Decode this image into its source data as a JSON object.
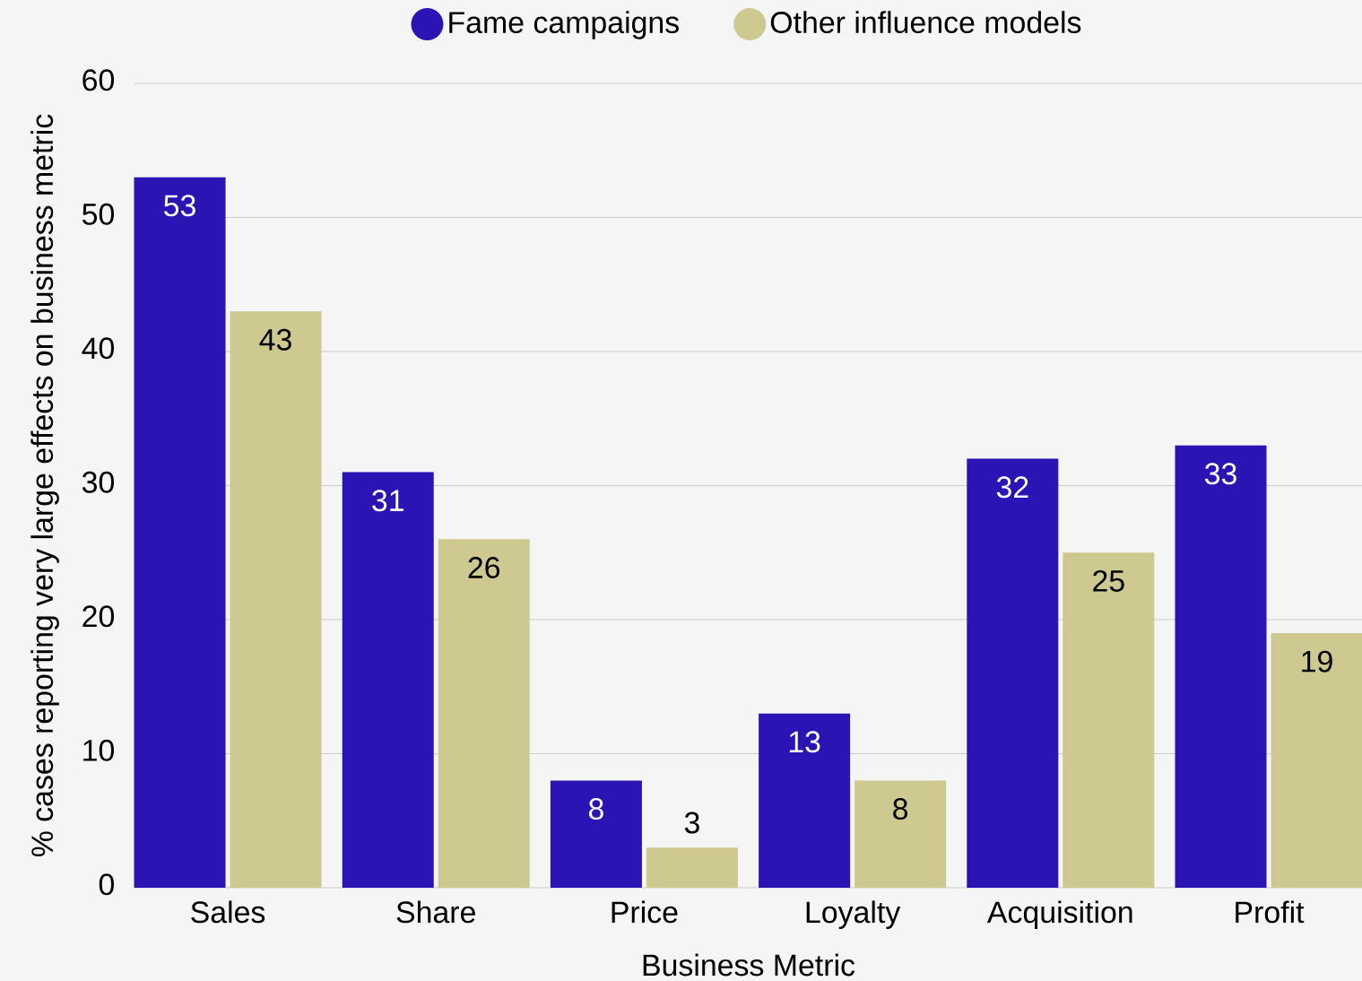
{
  "chart_data": {
    "type": "bar",
    "xlabel": "Business Metric",
    "ylabel": "% cases reporting very large effects on business metric",
    "categories": [
      "Sales",
      "Share",
      "Price",
      "Loyalty",
      "Acquisition",
      "Profit"
    ],
    "series": [
      {
        "name": "Fame campaigns",
        "color": "#2a14b4",
        "values": [
          53,
          31,
          8,
          13,
          32,
          33
        ]
      },
      {
        "name": "Other influence models",
        "color": "#cdc991",
        "values": [
          43,
          26,
          3,
          8,
          25,
          19
        ]
      }
    ],
    "ylim": [
      0,
      60
    ],
    "yticks": [
      0,
      10,
      20,
      30,
      40,
      50,
      60
    ],
    "grid": "y",
    "legend": "top",
    "data_labels": true
  }
}
